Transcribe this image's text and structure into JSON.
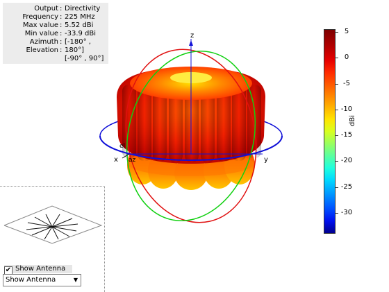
{
  "info": {
    "rows": [
      {
        "key": "Output",
        "value": "Directivity"
      },
      {
        "key": "Frequency",
        "value": "225 MHz"
      },
      {
        "key": "Max value",
        "value": "5.52 dBi"
      },
      {
        "key": "Min value",
        "value": "-33.9 dBi"
      },
      {
        "key": "Azimuth",
        "value": "[-180° ,"
      },
      {
        "key": "Elevation",
        "value": "180°]"
      },
      {
        "key": "",
        "value": "[-90° , 90°]"
      }
    ],
    "separator": ":"
  },
  "axes": {
    "z": "z",
    "x": "x",
    "y": "y",
    "el": "el",
    "az": "az"
  },
  "colorbar": {
    "unit": "dBi",
    "ticks": [
      "5",
      "0",
      "-5",
      "-10",
      "-15",
      "-20",
      "-25",
      "-30"
    ],
    "range": [
      -34,
      5.52
    ],
    "colors": [
      "#7f0000",
      "#ff0000",
      "#ffff00",
      "#00ffff",
      "#0000ff",
      "#00008f"
    ]
  },
  "controls": {
    "show_antenna_checkbox": {
      "label": "Show Antenna",
      "checked": true
    },
    "antenna_select": {
      "value": "Show Antenna"
    }
  },
  "colors": {
    "azimuth_ring": "#1010d8",
    "elevation_ring_red": "#e01010",
    "elevation_ring_green": "#10d010",
    "pattern_hot": "#ff3000",
    "pattern_center": "#ffd000"
  }
}
